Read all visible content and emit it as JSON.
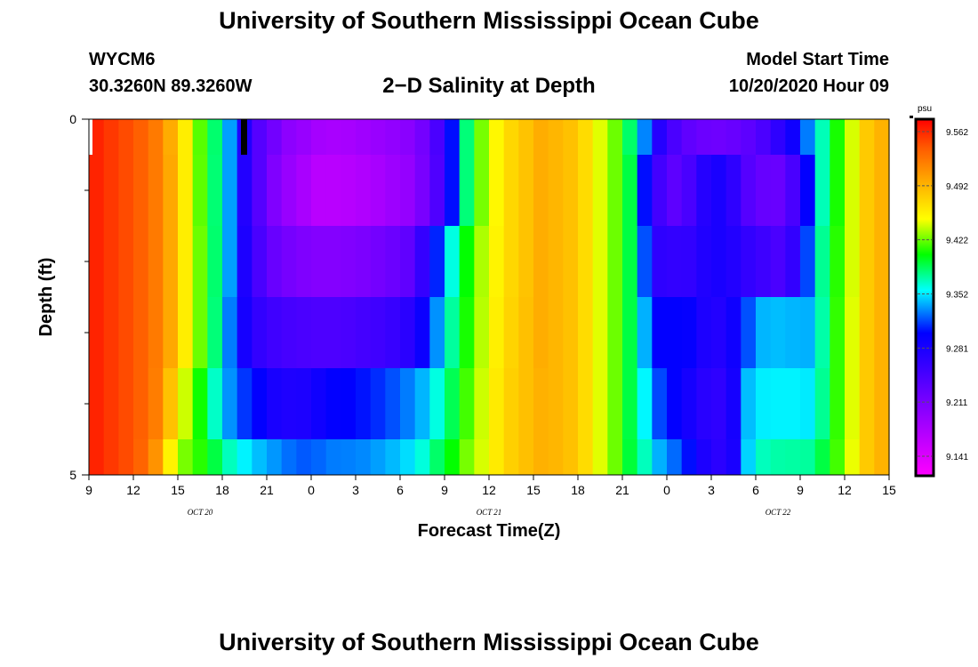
{
  "header": {
    "title": "University of Southern Mississippi Ocean Cube",
    "station_id": "WYCM6",
    "station_coords": "30.3260N 89.3260W",
    "plot_title": "2−D Salinity at Depth",
    "model_label": "Model Start Time",
    "model_time": "10/20/2020 Hour 09"
  },
  "footer": {
    "title": "University of Southern Mississippi Ocean Cube"
  },
  "chart_data": {
    "type": "heatmap",
    "title": "2−D Salinity at Depth",
    "xlabel": "Forecast Time(Z)",
    "ylabel": "Depth (ft)",
    "x_tick_labels": [
      "9",
      "12",
      "15",
      "18",
      "21",
      "0",
      "3",
      "6",
      "9",
      "12",
      "15",
      "18",
      "21",
      "0",
      "3",
      "6",
      "9",
      "12",
      "15"
    ],
    "x_date_labels": [
      "OCT 20",
      "OCT 21",
      "OCT 22"
    ],
    "y_tick_labels": [
      "0",
      "5"
    ],
    "ylim": [
      0,
      5
    ],
    "colorbar": {
      "unit": "psu",
      "tick_labels": [
        "9.562",
        "9.492",
        "9.422",
        "9.352",
        "9.281",
        "9.211",
        "9.141"
      ],
      "range": [
        9.11,
        9.59
      ]
    },
    "x_hours_since_start": [
      0,
      1,
      2,
      3,
      4,
      5,
      6,
      7,
      8,
      9,
      10,
      11,
      12,
      13,
      14,
      15,
      16,
      17,
      18,
      19,
      20,
      21,
      22,
      23,
      24,
      25,
      26,
      27,
      28,
      29,
      30,
      31,
      32,
      33,
      34,
      35,
      36,
      37,
      38,
      39,
      40,
      41,
      42,
      43,
      44,
      45,
      46,
      47,
      48,
      49,
      50,
      51,
      52,
      53
    ],
    "depth_layers_ft": [
      "0-0.5",
      "0.5-1.5",
      "1.5-2.5",
      "2.5-3.5",
      "3.5-4.5",
      "4.5-5"
    ],
    "values": [
      [
        9.575,
        9.566,
        9.558,
        9.548,
        9.534,
        9.506,
        9.466,
        9.424,
        9.387,
        9.338,
        9.277,
        9.236,
        9.215,
        9.196,
        9.188,
        9.178,
        9.175,
        9.177,
        9.182,
        9.187,
        9.192,
        9.198,
        9.214,
        9.244,
        9.305,
        9.385,
        9.43,
        9.46,
        9.48,
        9.492,
        9.505,
        9.5,
        9.493,
        9.477,
        9.45,
        9.428,
        9.388,
        9.332,
        9.272,
        9.244,
        9.228,
        9.22,
        9.218,
        9.222,
        9.23,
        9.243,
        9.265,
        9.29,
        9.33,
        9.373,
        9.412,
        9.448,
        9.488,
        9.502
      ],
      [
        9.575,
        9.566,
        9.558,
        9.548,
        9.534,
        9.508,
        9.466,
        9.425,
        9.386,
        9.338,
        9.275,
        9.236,
        9.205,
        9.188,
        9.175,
        9.163,
        9.163,
        9.165,
        9.17,
        9.176,
        9.184,
        9.19,
        9.21,
        9.24,
        9.305,
        9.385,
        9.43,
        9.46,
        9.48,
        9.492,
        9.505,
        9.5,
        9.493,
        9.477,
        9.45,
        9.428,
        9.395,
        9.305,
        9.25,
        9.23,
        9.245,
        9.272,
        9.282,
        9.265,
        9.236,
        9.224,
        9.222,
        9.245,
        9.3,
        9.373,
        9.412,
        9.448,
        9.488,
        9.502
      ],
      [
        9.575,
        9.566,
        9.558,
        9.548,
        9.534,
        9.508,
        9.466,
        9.428,
        9.387,
        9.338,
        9.28,
        9.245,
        9.222,
        9.212,
        9.206,
        9.202,
        9.202,
        9.204,
        9.208,
        9.214,
        9.22,
        9.228,
        9.26,
        9.31,
        9.365,
        9.408,
        9.44,
        9.462,
        9.48,
        9.492,
        9.505,
        9.5,
        9.493,
        9.477,
        9.45,
        9.428,
        9.395,
        9.32,
        9.265,
        9.262,
        9.263,
        9.276,
        9.282,
        9.275,
        9.262,
        9.253,
        9.244,
        9.262,
        9.318,
        9.38,
        9.415,
        9.448,
        9.488,
        9.502
      ],
      [
        9.575,
        9.566,
        9.558,
        9.548,
        9.534,
        9.508,
        9.466,
        9.428,
        9.385,
        9.33,
        9.285,
        9.262,
        9.252,
        9.247,
        9.244,
        9.242,
        9.242,
        9.244,
        9.248,
        9.252,
        9.258,
        9.268,
        9.293,
        9.335,
        9.378,
        9.412,
        9.442,
        9.465,
        9.482,
        9.494,
        9.505,
        9.5,
        9.493,
        9.477,
        9.45,
        9.428,
        9.395,
        9.342,
        9.3,
        9.3,
        9.298,
        9.28,
        9.275,
        9.29,
        9.32,
        9.343,
        9.345,
        9.343,
        9.342,
        9.376,
        9.417,
        9.45,
        9.488,
        9.502
      ],
      [
        9.575,
        9.566,
        9.558,
        9.548,
        9.532,
        9.493,
        9.446,
        9.41,
        9.37,
        9.335,
        9.314,
        9.3,
        9.283,
        9.278,
        9.28,
        9.29,
        9.3,
        9.302,
        9.306,
        9.312,
        9.32,
        9.33,
        9.343,
        9.365,
        9.392,
        9.42,
        9.446,
        9.468,
        9.484,
        9.494,
        9.503,
        9.5,
        9.493,
        9.477,
        9.45,
        9.428,
        9.395,
        9.358,
        9.318,
        9.3,
        9.285,
        9.27,
        9.265,
        9.285,
        9.345,
        9.356,
        9.357,
        9.357,
        9.355,
        9.38,
        9.417,
        9.45,
        9.488,
        9.502
      ],
      [
        9.575,
        9.566,
        9.558,
        9.546,
        9.52,
        9.463,
        9.43,
        9.415,
        9.395,
        9.372,
        9.357,
        9.345,
        9.336,
        9.327,
        9.322,
        9.325,
        9.33,
        9.331,
        9.333,
        9.338,
        9.344,
        9.352,
        9.366,
        9.388,
        9.408,
        9.43,
        9.448,
        9.468,
        9.484,
        9.494,
        9.503,
        9.5,
        9.493,
        9.477,
        9.45,
        9.428,
        9.397,
        9.372,
        9.342,
        9.326,
        9.305,
        9.28,
        9.268,
        9.282,
        9.35,
        9.372,
        9.376,
        9.377,
        9.378,
        9.395,
        9.42,
        9.452,
        9.488,
        9.502
      ]
    ]
  }
}
